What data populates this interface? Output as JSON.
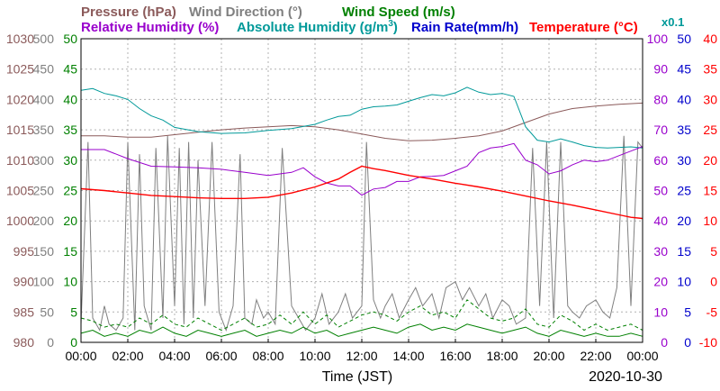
{
  "chart_data": {
    "type": "line",
    "legend": {
      "row1": [
        {
          "label": "Pressure (hPa)",
          "color": "#8b5a5a"
        },
        {
          "label": "Wind Direction (°)",
          "color": "#7f7f7f"
        },
        {
          "label": "Wind Speed (m/s)",
          "color": "#008000"
        }
      ],
      "row2": [
        {
          "label": "Relative Humidity (%)",
          "color": "#9900cc"
        },
        {
          "label": "Absolute Humidity (g/m",
          "sup": "3",
          "close": ")",
          "color": "#009999"
        },
        {
          "label": "Rain Rate(mm/h)",
          "color": "#0000cc"
        },
        {
          "label": "Temperature (°C)",
          "color": "#ff0000"
        }
      ],
      "multiplier": {
        "label": "x0.1",
        "color": "#009999"
      }
    },
    "x_ticks": [
      "00:00",
      "02:00",
      "04:00",
      "06:00",
      "08:00",
      "10:00",
      "12:00",
      "14:00",
      "16:00",
      "18:00",
      "20:00",
      "22:00",
      "00:00"
    ],
    "xlabel": "Time (JST)",
    "date": "2020-10-30",
    "y_axes": [
      {
        "name": "pressure",
        "color": "#8b5a5a",
        "min": 980,
        "max": 1030,
        "ticks": [
          "1030",
          "1025",
          "1020",
          "1015",
          "1010",
          "1005",
          "1000",
          "995",
          "990",
          "985",
          "980"
        ]
      },
      {
        "name": "wind-direction",
        "color": "#7f7f7f",
        "min": 0,
        "max": 500,
        "ticks": [
          "500",
          "450",
          "400",
          "350",
          "300",
          "250",
          "200",
          "150",
          "100",
          "50",
          "0"
        ]
      },
      {
        "name": "wind-speed",
        "color": "#008000",
        "min": 0,
        "max": 50,
        "ticks": [
          "50",
          "45",
          "40",
          "35",
          "30",
          "25",
          "20",
          "15",
          "10",
          "5",
          "0"
        ]
      },
      {
        "name": "humidity",
        "color": "#9900cc",
        "min": 0,
        "max": 100,
        "ticks": [
          "100",
          "90",
          "80",
          "70",
          "60",
          "50",
          "40",
          "30",
          "20",
          "10",
          "0"
        ]
      },
      {
        "name": "rain-rate",
        "color": "#0000cc",
        "min": 0,
        "max": 50,
        "ticks": [
          "50",
          "45",
          "40",
          "35",
          "30",
          "25",
          "20",
          "15",
          "10",
          "5",
          "0"
        ]
      },
      {
        "name": "temperature",
        "color": "#ff0000",
        "min": -10,
        "max": 40,
        "ticks": [
          "40",
          "35",
          "30",
          "25",
          "20",
          "15",
          "10",
          "5",
          "0",
          "-5",
          "-10"
        ]
      }
    ],
    "series": [
      {
        "name": "Pressure (hPa)",
        "axis": "pressure",
        "color": "#8b5a5a",
        "x": [
          0,
          1,
          2,
          3,
          4,
          5,
          6,
          7,
          8,
          9,
          10,
          11,
          12,
          13,
          14,
          15,
          16,
          17,
          18,
          19,
          20,
          21,
          22,
          23,
          24
        ],
        "y": [
          1014.0,
          1014.0,
          1013.8,
          1013.8,
          1014.2,
          1014.6,
          1015.0,
          1015.3,
          1015.5,
          1015.7,
          1015.5,
          1015.0,
          1014.3,
          1013.6,
          1013.2,
          1013.3,
          1013.6,
          1014.0,
          1014.8,
          1016.2,
          1017.6,
          1018.5,
          1018.9,
          1019.2,
          1019.4
        ]
      },
      {
        "name": "Absolute Humidity (g/m3) x0.1",
        "axis": "wind-speed",
        "color": "#009999",
        "x": [
          0,
          0.5,
          1,
          1.5,
          2,
          2.5,
          3,
          3.5,
          4,
          5,
          6,
          7,
          8,
          9,
          10,
          10.5,
          11,
          11.5,
          12,
          12.5,
          13,
          13.5,
          14,
          14.5,
          15,
          15.5,
          16,
          16.5,
          17,
          17.5,
          18,
          18.5,
          19,
          19.5,
          20,
          20.5,
          21,
          21.5,
          22,
          22.5,
          23,
          23.5,
          24
        ],
        "y": [
          41.5,
          41.8,
          41.0,
          40.6,
          40.0,
          38.5,
          37.3,
          36.6,
          35.4,
          34.7,
          34.4,
          34.5,
          34.9,
          35.2,
          35.9,
          36.6,
          37.2,
          37.4,
          38.4,
          38.8,
          38.9,
          39.1,
          39.7,
          40.3,
          40.8,
          40.6,
          41.1,
          42.0,
          41.2,
          40.8,
          41.0,
          40.5,
          35.5,
          33.3,
          33.0,
          33.5,
          33.0,
          32.4,
          32.1,
          32.0,
          32.1,
          32.2,
          32.0
        ]
      },
      {
        "name": "Relative Humidity (%)",
        "axis": "humidity",
        "color": "#9900cc",
        "x": [
          0,
          1,
          2,
          3,
          4,
          5,
          6,
          7,
          8,
          9,
          9.5,
          10,
          10.5,
          11,
          11.5,
          12,
          12.5,
          13,
          13.5,
          14,
          14.5,
          15,
          15.5,
          16,
          16.5,
          17,
          17.5,
          18,
          18.5,
          19,
          19.5,
          20,
          20.5,
          21,
          21.5,
          22,
          22.5,
          23,
          23.5,
          24
        ],
        "y": [
          63.5,
          63.5,
          60.5,
          58.0,
          57.8,
          57.5,
          57.0,
          56.0,
          55.0,
          56.0,
          57.5,
          54.5,
          52.5,
          51.5,
          51.5,
          48.5,
          50.5,
          51.0,
          53.0,
          53.0,
          54.5,
          54.7,
          55.0,
          56.5,
          58.0,
          62.5,
          64.0,
          64.5,
          65.5,
          60.0,
          58.5,
          55.5,
          56.5,
          58.5,
          60.0,
          59.5,
          60.0,
          61.5,
          63.0,
          64.5
        ]
      },
      {
        "name": "Temperature (°C)",
        "axis": "temperature",
        "color": "#ff0000",
        "x": [
          0,
          1,
          2,
          3,
          4,
          5,
          6,
          7,
          8,
          9,
          10,
          11,
          11.5,
          12,
          12.5,
          13,
          14,
          15,
          16,
          17,
          18,
          19,
          20,
          21,
          22,
          23,
          23.5,
          24
        ],
        "y": [
          15.3,
          15.0,
          14.6,
          14.2,
          14.0,
          13.8,
          13.7,
          13.7,
          13.9,
          14.6,
          15.6,
          16.9,
          18.0,
          19.0,
          18.6,
          18.3,
          17.5,
          16.9,
          16.2,
          15.6,
          14.9,
          14.1,
          13.3,
          12.6,
          11.8,
          11.0,
          10.6,
          10.4
        ]
      },
      {
        "name": "Wind Speed (m/s)",
        "axis": "wind-speed",
        "color": "#008000",
        "x": [
          0,
          0.5,
          1,
          1.5,
          2,
          2.5,
          3,
          3.5,
          4,
          4.5,
          5,
          5.5,
          6,
          6.5,
          7,
          7.5,
          8,
          8.5,
          9,
          9.5,
          10,
          10.5,
          11,
          11.5,
          12,
          12.5,
          13,
          13.5,
          14,
          14.5,
          15,
          15.5,
          16,
          16.5,
          17,
          17.5,
          18,
          18.5,
          19,
          19.5,
          20,
          20.5,
          21,
          21.5,
          22,
          22.5,
          23,
          23.5,
          24
        ],
        "y": [
          1.5,
          2.0,
          1.0,
          1.5,
          1.0,
          2.0,
          1.5,
          2.5,
          1.5,
          1.0,
          2.0,
          1.5,
          1.0,
          1.5,
          2.0,
          1.0,
          1.5,
          2.0,
          1.5,
          2.5,
          1.5,
          2.0,
          1.0,
          1.5,
          2.0,
          2.5,
          2.0,
          1.5,
          2.5,
          3.0,
          2.0,
          2.5,
          2.0,
          3.0,
          2.5,
          2.0,
          1.5,
          2.0,
          2.5,
          1.5,
          1.0,
          2.0,
          1.5,
          1.0,
          1.5,
          1.0,
          1.0,
          1.5,
          1.0
        ]
      },
      {
        "name": "Wind Speed (m/s) max",
        "axis": "wind-speed",
        "color": "#008000",
        "dashed": true,
        "x": [
          0,
          0.5,
          1,
          1.5,
          2,
          2.5,
          3,
          3.5,
          4,
          4.5,
          5,
          5.5,
          6,
          6.5,
          7,
          7.5,
          8,
          8.5,
          9,
          9.5,
          10,
          10.5,
          11,
          11.5,
          12,
          12.5,
          13,
          13.5,
          14,
          14.5,
          15,
          15.5,
          16,
          16.5,
          17,
          17.5,
          18,
          18.5,
          19,
          19.5,
          20,
          20.5,
          21,
          21.5,
          22,
          22.5,
          23,
          23.5,
          24
        ],
        "y": [
          4.0,
          3.5,
          2.5,
          3.0,
          2.5,
          4.0,
          3.0,
          4.5,
          3.0,
          2.5,
          4.0,
          3.0,
          2.0,
          3.0,
          4.0,
          2.5,
          3.0,
          4.5,
          3.0,
          5.0,
          3.0,
          4.5,
          2.5,
          3.5,
          4.5,
          5.0,
          4.5,
          3.5,
          5.0,
          6.0,
          4.5,
          5.0,
          4.0,
          7.0,
          5.5,
          4.0,
          3.5,
          4.0,
          5.5,
          3.0,
          2.5,
          4.5,
          3.5,
          2.0,
          3.0,
          2.0,
          2.5,
          3.0,
          2.0
        ]
      },
      {
        "name": "Wind Direction (°)",
        "axis": "wind-direction",
        "color": "#7f7f7f",
        "x": [
          0,
          0.3,
          0.5,
          0.8,
          1.0,
          1.2,
          1.5,
          1.8,
          2.0,
          2.3,
          2.5,
          2.7,
          3.0,
          3.2,
          3.5,
          3.7,
          4.0,
          4.2,
          4.4,
          4.6,
          4.8,
          5.0,
          5.3,
          5.6,
          5.9,
          6.2,
          6.5,
          6.8,
          7.0,
          7.3,
          7.5,
          7.8,
          8.0,
          8.3,
          8.6,
          9.0,
          9.3,
          9.6,
          10.0,
          10.3,
          10.6,
          11.0,
          11.3,
          11.6,
          12.0,
          12.2,
          12.5,
          12.8,
          13.0,
          13.3,
          13.6,
          14.0,
          14.3,
          14.6,
          15.0,
          15.3,
          15.6,
          16.0,
          16.3,
          16.6,
          17.0,
          17.3,
          17.6,
          18.0,
          18.3,
          18.6,
          19.0,
          19.3,
          19.6,
          19.9,
          20.2,
          20.5,
          20.8,
          21.0,
          21.3,
          21.6,
          22.0,
          22.3,
          22.6,
          22.9,
          23.2,
          23.5,
          23.8,
          24
        ],
        "y": [
          30,
          330,
          40,
          20,
          60,
          30,
          20,
          40,
          330,
          20,
          310,
          60,
          20,
          320,
          40,
          340,
          60,
          320,
          30,
          330,
          40,
          300,
          60,
          330,
          50,
          20,
          60,
          310,
          40,
          30,
          70,
          40,
          50,
          30,
          320,
          60,
          40,
          20,
          40,
          80,
          30,
          50,
          80,
          40,
          60,
          330,
          70,
          40,
          60,
          80,
          40,
          70,
          90,
          60,
          80,
          40,
          90,
          100,
          70,
          90,
          60,
          80,
          40,
          70,
          60,
          30,
          40,
          320,
          60,
          330,
          40,
          330,
          60,
          50,
          40,
          60,
          70,
          50,
          40,
          90,
          340,
          60,
          330,
          320
        ]
      }
    ]
  }
}
